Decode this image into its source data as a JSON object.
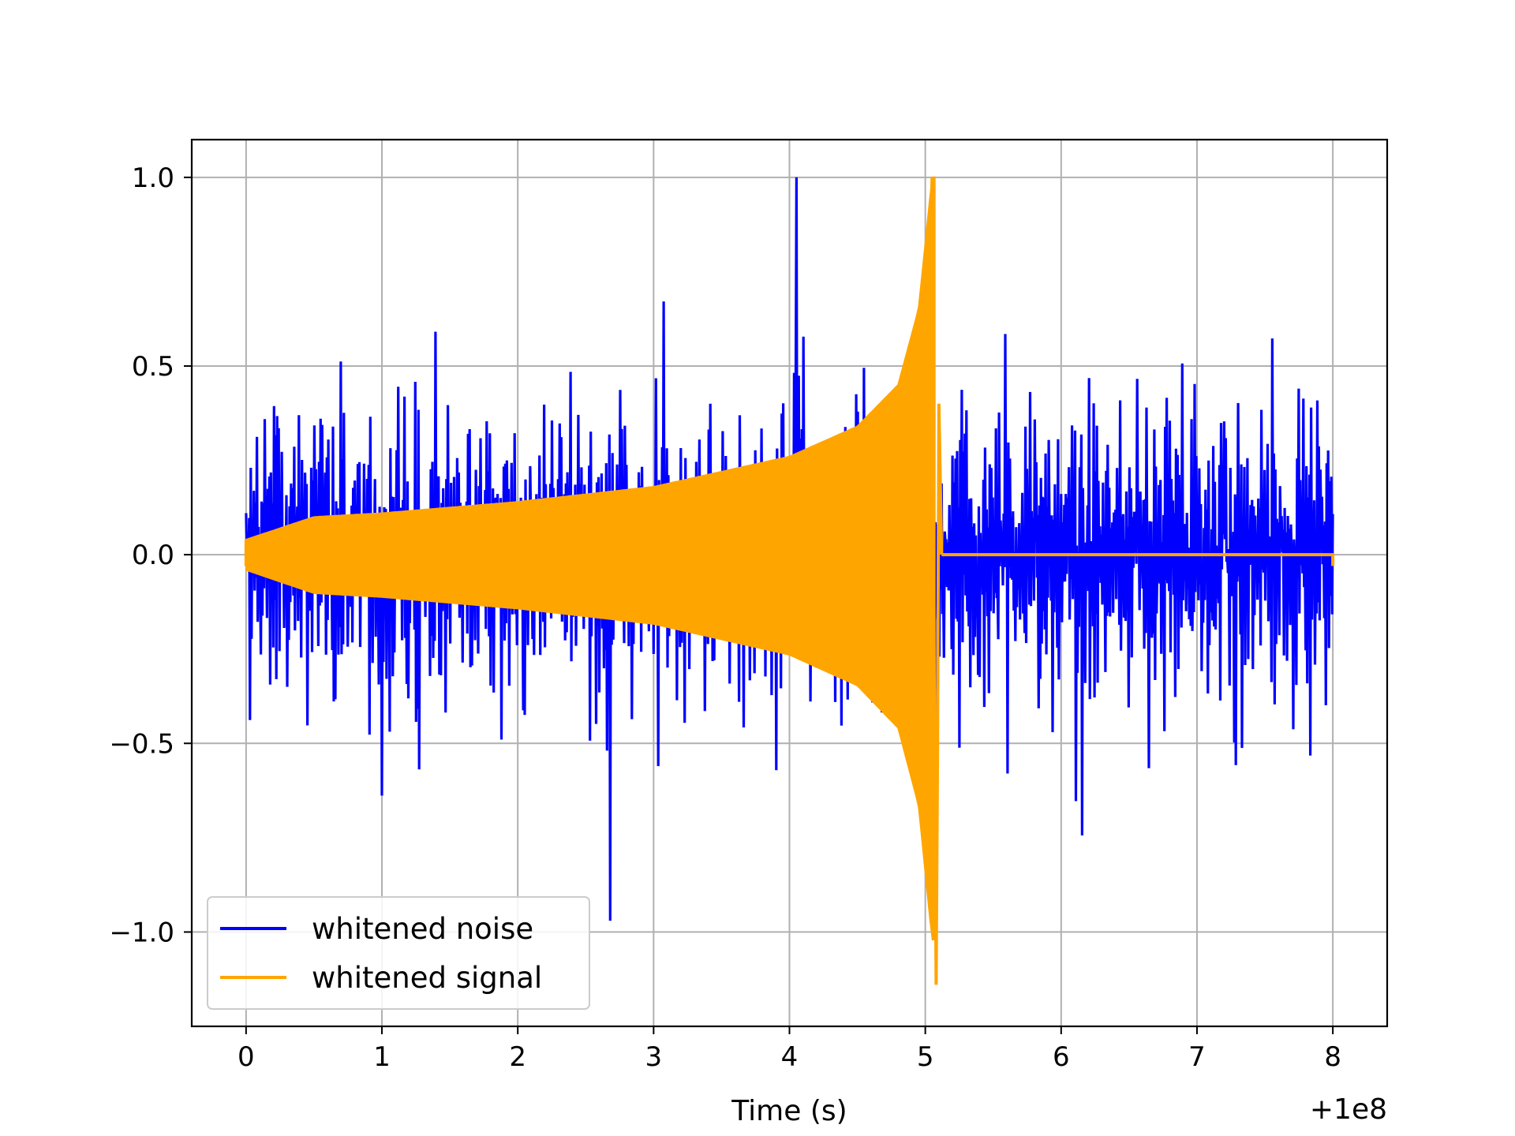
{
  "chart_data": {
    "type": "line",
    "title": "",
    "xlabel": "Time (s)",
    "ylabel": "",
    "x_offset_label": "+1e8",
    "xlim": [
      -0.4,
      8.4
    ],
    "ylim": [
      -1.25,
      1.1
    ],
    "x_ticks": [
      0,
      1,
      2,
      3,
      4,
      5,
      6,
      7,
      8
    ],
    "x_tick_labels": [
      "0",
      "1",
      "2",
      "3",
      "4",
      "5",
      "6",
      "7",
      "8"
    ],
    "y_ticks": [
      1.0,
      0.5,
      0.0,
      -0.5,
      -1.0
    ],
    "y_tick_labels": [
      "1.0",
      "0.5",
      "0.0",
      "−0.5",
      "−1.0"
    ],
    "grid": true,
    "legend_position": "lower-left",
    "series": [
      {
        "name": "whitened noise",
        "color": "#0000ff",
        "description_values": {
          "x_range": [
            0,
            8
          ],
          "typical_envelope": 0.5,
          "max": 1.0,
          "max_at_x": 4.05,
          "min": -0.97,
          "min_at_x": 2.68
        }
      },
      {
        "name": "whitened signal",
        "color": "#ffa500",
        "description_values": {
          "x_range": [
            0,
            8
          ],
          "envelope_points": [
            {
              "x": 0.0,
              "y": 0.04
            },
            {
              "x": 0.5,
              "y": 0.1
            },
            {
              "x": 1.0,
              "y": 0.11
            },
            {
              "x": 2.0,
              "y": 0.14
            },
            {
              "x": 3.0,
              "y": 0.18
            },
            {
              "x": 4.0,
              "y": 0.26
            },
            {
              "x": 4.5,
              "y": 0.34
            },
            {
              "x": 4.8,
              "y": 0.45
            },
            {
              "x": 4.95,
              "y": 0.65
            },
            {
              "x": 5.05,
              "y": 1.0
            }
          ],
          "max": 1.0,
          "max_at_x": 5.05,
          "min": -1.14,
          "min_at_x": 5.08,
          "zero_after_x": 5.12
        }
      }
    ]
  }
}
